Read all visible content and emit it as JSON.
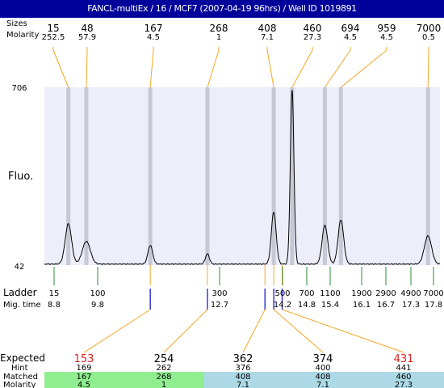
{
  "title": "FANCL-multiEx / 16 / MCF7 (2007-04-19 96hrs) / Well ID 1019891",
  "labels": {
    "size_row": "Sizes",
    "molarity_row": "Molarity",
    "fluo": "Fluo.",
    "ladder": "Ladder",
    "mig_time": "Mig. time",
    "expected": "Expected",
    "hint": "Hint",
    "matched": "Matched",
    "molarity_bottom": "Molarity"
  },
  "colors": {
    "title_bg": "#00009a",
    "plot_bg": "#eeeefa",
    "band": "#c8c8d4",
    "orange": "#f5a623",
    "ladder_green": "#2e8b3a",
    "blue": "#1a1ad0",
    "red": "#e02020",
    "matched_green": "#90ee90",
    "matched_blue": "#add8e6"
  },
  "chart_data": {
    "type": "line",
    "xlabel": "Mig. time",
    "ylabel": "Fluo.",
    "ylim": [
      42,
      706
    ],
    "xlim": [
      8.2,
      18.1
    ],
    "y_ticks": [
      "706",
      "42"
    ],
    "baseline": 46,
    "sizes": [
      {
        "size": "15",
        "molarity": "252.5",
        "time": 8.8
      },
      {
        "size": "48",
        "molarity": "57.9",
        "time": 9.25
      },
      {
        "size": "167",
        "molarity": "4.5",
        "time": 10.85
      },
      {
        "size": "268",
        "molarity": "1",
        "time": 12.28
      },
      {
        "size": "408",
        "molarity": "7.1",
        "time": 13.94
      },
      {
        "size": "460",
        "molarity": "27.3",
        "time": 14.4
      },
      {
        "size": "694",
        "molarity": "4.5",
        "time": 15.22
      },
      {
        "size": "959",
        "molarity": "4.5",
        "time": 15.62
      },
      {
        "size": "7000",
        "molarity": "0.5",
        "time": 17.8
      }
    ],
    "peaks": [
      {
        "time": 8.8,
        "height": 150,
        "width": 0.08
      },
      {
        "time": 9.25,
        "height": 85,
        "width": 0.1
      },
      {
        "time": 10.85,
        "height": 70,
        "width": 0.06
      },
      {
        "time": 12.28,
        "height": 38,
        "width": 0.05
      },
      {
        "time": 13.94,
        "height": 195,
        "width": 0.06
      },
      {
        "time": 14.4,
        "height": 650,
        "width": 0.045
      },
      {
        "time": 15.22,
        "height": 145,
        "width": 0.07
      },
      {
        "time": 15.62,
        "height": 165,
        "width": 0.07
      },
      {
        "time": 17.8,
        "height": 105,
        "width": 0.09
      }
    ],
    "ladder": [
      {
        "size": "15",
        "time": "8.8"
      },
      {
        "size": "100",
        "time": "9.8"
      },
      {
        "size": "300",
        "time": "12.7"
      },
      {
        "size": "500",
        "time": "14.2"
      },
      {
        "size": "700",
        "time": "14.8"
      },
      {
        "size": "1100",
        "time": "15.4"
      },
      {
        "size": "1900",
        "time": "16.1"
      },
      {
        "size": "2900",
        "time": "16.7"
      },
      {
        "size": "4900",
        "time": "17.3"
      },
      {
        "size": "7000",
        "time": "17.8"
      }
    ],
    "expected": [
      {
        "expected": "153",
        "hint": "169",
        "matched": "167",
        "molarity": "4.5",
        "time": 10.85,
        "red": true,
        "group": "green"
      },
      {
        "expected": "254",
        "hint": "262",
        "matched": "268",
        "molarity": "1",
        "time": 12.28,
        "red": false,
        "group": "green"
      },
      {
        "expected": "362",
        "hint": "376",
        "matched": "408",
        "molarity": "7.1",
        "time": 13.72,
        "red": false,
        "group": "blue"
      },
      {
        "expected": "374",
        "hint": "400",
        "matched": "408",
        "molarity": "7.1",
        "time": 13.94,
        "red": false,
        "group": "blue"
      },
      {
        "expected": "431",
        "hint": "441",
        "matched": "460",
        "molarity": "27.3",
        "time": 14.15,
        "red": true,
        "group": "blue"
      }
    ]
  }
}
